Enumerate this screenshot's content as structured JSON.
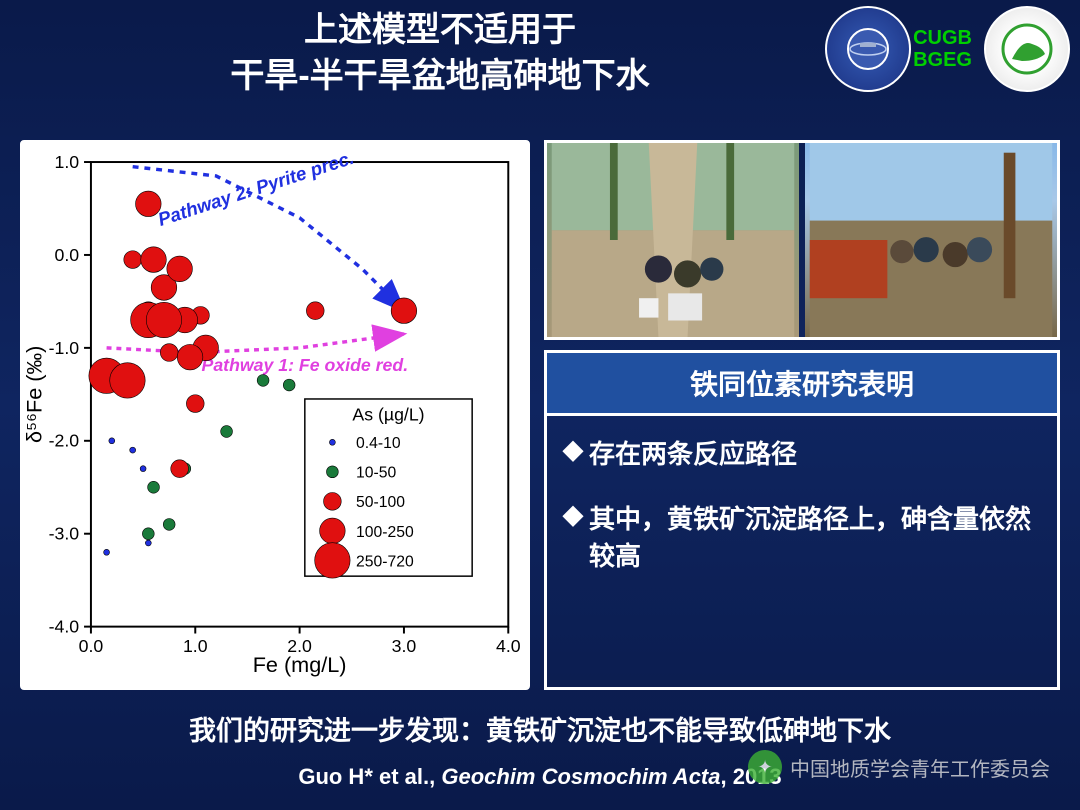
{
  "title_line1": "上述模型不适用于",
  "title_line2": "干旱-半干旱盆地高砷地下水",
  "logos": {
    "label1": "CUGB",
    "label2": "BGEG"
  },
  "chart": {
    "type": "scatter",
    "xlabel": "Fe (mg/L)",
    "ylabel": "δ⁵⁶Fe (‰)",
    "xlim": [
      0.0,
      4.0
    ],
    "xtick_step": 1.0,
    "ylim": [
      -4.0,
      1.0
    ],
    "ytick_step": 1.0,
    "background_color": "#ffffff",
    "axis_color": "#000000",
    "label_fontsize": 22,
    "tick_fontsize": 18,
    "pathway1": {
      "label": "Pathway 1: Fe oxide red.",
      "color": "#e040e0",
      "dash": "5,5",
      "arrow": true,
      "points": [
        [
          0.15,
          -1.0
        ],
        [
          1.0,
          -1.05
        ],
        [
          2.0,
          -1.0
        ],
        [
          3.0,
          -0.85
        ]
      ]
    },
    "pathway2": {
      "label": "Pathway 2: Pyrite prec.",
      "color": "#2030e0",
      "dash": "6,6",
      "arrow": true,
      "points": [
        [
          0.4,
          0.95
        ],
        [
          1.2,
          0.85
        ],
        [
          2.0,
          0.4
        ],
        [
          2.6,
          -0.15
        ],
        [
          3.0,
          -0.6
        ]
      ]
    },
    "legend": {
      "title": "As (µg/L)",
      "title_fontsize": 18,
      "item_fontsize": 16,
      "items": [
        {
          "label": "0.4-10",
          "color": "#2030e0",
          "size": 3
        },
        {
          "label": "10-50",
          "color": "#1a7a3a",
          "size": 6
        },
        {
          "label": "50-100",
          "color": "#e01010",
          "size": 9
        },
        {
          "label": "100-250",
          "color": "#e01010",
          "size": 13
        },
        {
          "label": "250-720",
          "color": "#e01010",
          "size": 18
        }
      ]
    },
    "series": [
      {
        "bin": "0.4-10",
        "color": "#2030e0",
        "size": 3,
        "points": [
          [
            0.35,
            -1.35
          ],
          [
            0.4,
            -2.1
          ],
          [
            0.15,
            -3.2
          ],
          [
            0.55,
            -3.1
          ],
          [
            0.2,
            -2.0
          ],
          [
            0.5,
            -2.3
          ]
        ]
      },
      {
        "bin": "10-50",
        "color": "#1a7a3a",
        "size": 6,
        "points": [
          [
            0.6,
            -2.5
          ],
          [
            0.9,
            -2.3
          ],
          [
            1.3,
            -1.9
          ],
          [
            1.65,
            -1.35
          ],
          [
            1.9,
            -1.4
          ],
          [
            0.55,
            -3.0
          ],
          [
            0.75,
            -2.9
          ]
        ]
      },
      {
        "bin": "50-100",
        "color": "#e01010",
        "size": 9,
        "points": [
          [
            0.4,
            -0.05
          ],
          [
            0.55,
            -0.6
          ],
          [
            0.75,
            -1.05
          ],
          [
            1.0,
            -1.6
          ],
          [
            0.85,
            -2.3
          ],
          [
            1.05,
            -0.65
          ],
          [
            2.15,
            -0.6
          ]
        ]
      },
      {
        "bin": "100-250",
        "color": "#e01010",
        "size": 13,
        "points": [
          [
            0.55,
            0.55
          ],
          [
            0.6,
            -0.05
          ],
          [
            0.7,
            -0.35
          ],
          [
            0.85,
            -0.15
          ],
          [
            0.9,
            -0.7
          ],
          [
            1.1,
            -1.0
          ],
          [
            0.95,
            -1.1
          ],
          [
            3.0,
            -0.6
          ]
        ]
      },
      {
        "bin": "250-720",
        "color": "#e01010",
        "size": 18,
        "points": [
          [
            0.15,
            -1.3
          ],
          [
            0.35,
            -1.35
          ],
          [
            0.55,
            -0.7
          ],
          [
            0.7,
            -0.7
          ]
        ]
      }
    ]
  },
  "info": {
    "header": "铁同位素研究表明",
    "items": [
      "存在两条反应路径",
      "其中，黄铁矿沉淀路径上，砷含量依然较高"
    ]
  },
  "bottom_text": "我们的研究进一步发现：黄铁矿沉淀也不能导致低砷地下水",
  "citation_author": "Guo H* et al., ",
  "citation_journal": "Geochim Cosmochim Acta",
  "citation_year": ", 2013",
  "watermark": "中国地质学会青年工作委员会"
}
